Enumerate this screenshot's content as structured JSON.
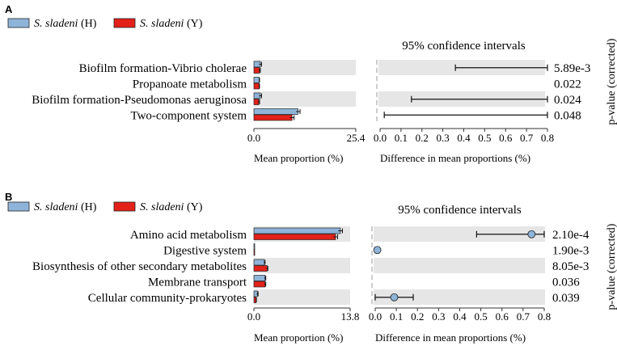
{
  "chart_data": [
    {
      "type": "bar",
      "panel_label": "A",
      "legend": [
        {
          "name": "S. sladeni",
          "suffix": "(H)",
          "color": "#8fb4d9"
        },
        {
          "name": "S. sladeni",
          "suffix": "(Y)",
          "color": "#e32119"
        }
      ],
      "categories": [
        "Biofilm formation-Vibrio cholerae",
        "Propanoate metabolism",
        "Biofilm formation-Pseudomonas aeruginosa",
        "Two-component system"
      ],
      "series": [
        {
          "name": "S. sladeni (H)",
          "values": [
            1.6,
            1.3,
            1.6,
            11.0
          ],
          "errors": [
            0.3,
            0.1,
            0.3,
            0.5
          ]
        },
        {
          "name": "S. sladeni (Y)",
          "values": [
            1.4,
            1.3,
            1.2,
            9.5
          ],
          "errors": [
            0.2,
            0.1,
            0.2,
            0.5
          ]
        }
      ],
      "bar_axis": {
        "xlabel": "Mean proportion (%)",
        "xlim": [
          0,
          25.4
        ],
        "ticks": [
          "0.0",
          "25.4"
        ]
      },
      "ci_panel": {
        "title": "95% confidence intervals",
        "xlabel": "Difference in mean proportions (%)",
        "xlim": [
          0,
          0.8
        ],
        "ticks": [
          "0.0",
          "0.1",
          "0.2",
          "0.3",
          "0.4",
          "0.5",
          "0.6",
          "0.7",
          "0.8"
        ],
        "intervals": [
          {
            "low": 0.36,
            "high": 0.8,
            "mean": null
          },
          {
            "low": null,
            "high": null,
            "mean": null
          },
          {
            "low": 0.15,
            "high": 0.8,
            "mean": null
          },
          {
            "low": 0.02,
            "high": 0.8,
            "mean": null
          }
        ]
      },
      "p_values": [
        "5.89e-3",
        "0.022",
        "0.024",
        "0.048"
      ],
      "p_axis_label": "p-value (corrected)"
    },
    {
      "type": "bar",
      "panel_label": "B",
      "legend": [
        {
          "name": "S. sladeni",
          "suffix": "(H)",
          "color": "#8fb4d9"
        },
        {
          "name": "S. sladeni",
          "suffix": "(Y)",
          "color": "#e32119"
        }
      ],
      "categories": [
        "Amino acid metabolism",
        "Digestive system",
        "Biosynthesis of other secondary metabolites",
        "Membrane transport",
        "Cellular community-prokaryotes"
      ],
      "series": [
        {
          "name": "S. sladeni (H)",
          "values": [
            12.4,
            0.1,
            1.5,
            1.6,
            0.5
          ],
          "errors": [
            0.3,
            0.0,
            0.1,
            0.1,
            0.1
          ]
        },
        {
          "name": "S. sladeni (Y)",
          "values": [
            11.7,
            0.05,
            1.9,
            1.6,
            0.3
          ],
          "errors": [
            0.3,
            0.0,
            0.1,
            0.1,
            0.05
          ]
        }
      ],
      "bar_axis": {
        "xlabel": "Mean proportion (%)",
        "xlim": [
          0,
          13.8
        ],
        "ticks": [
          "0.0",
          "13.8"
        ]
      },
      "ci_panel": {
        "title": "95% confidence intervals",
        "xlabel": "Difference in mean proportions (%)",
        "xlim": [
          0,
          0.8
        ],
        "ticks": [
          "0.0",
          "0.1",
          "0.2",
          "0.3",
          "0.4",
          "0.5",
          "0.6",
          "0.7",
          "0.8"
        ],
        "intervals": [
          {
            "low": 0.48,
            "high": 0.8,
            "mean": 0.74
          },
          {
            "low": 0.0,
            "high": 0.02,
            "mean": 0.01
          },
          {
            "low": null,
            "high": null,
            "mean": null
          },
          {
            "low": null,
            "high": null,
            "mean": null
          },
          {
            "low": 0.0,
            "high": 0.18,
            "mean": 0.09
          }
        ]
      },
      "p_values": [
        "2.10e-4",
        "1.90e-3",
        "8.05e-3",
        "0.036",
        "0.039"
      ],
      "p_axis_label": "p-value (corrected)"
    }
  ]
}
